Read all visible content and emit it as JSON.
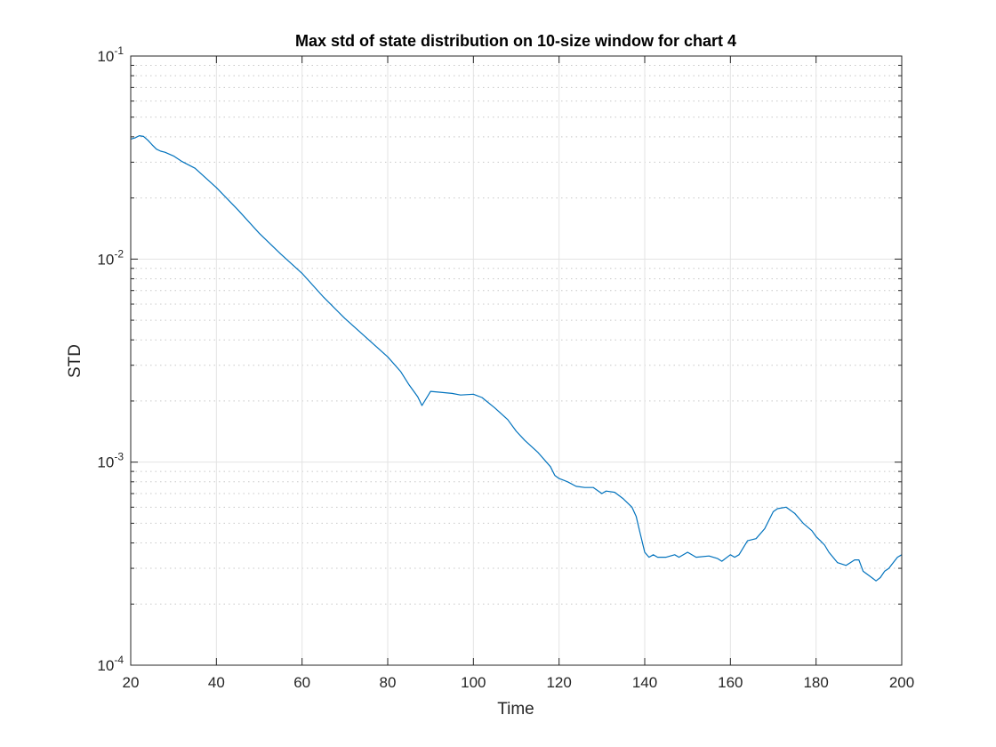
{
  "chart_data": {
    "type": "line",
    "title": "Max std of state distribution on 10-size window for chart 4",
    "xlabel": "Time",
    "ylabel": "STD",
    "xlim": [
      20,
      200
    ],
    "ylim": [
      0.0001,
      0.1
    ],
    "yscale": "log",
    "xticks": [
      20,
      40,
      60,
      80,
      100,
      120,
      140,
      160,
      180,
      200
    ],
    "yticks": [
      {
        "base": "10",
        "exp": "-4",
        "value": 0.0001
      },
      {
        "base": "10",
        "exp": "-3",
        "value": 0.001
      },
      {
        "base": "10",
        "exp": "-2",
        "value": 0.01
      },
      {
        "base": "10",
        "exp": "-1",
        "value": 0.1
      }
    ],
    "grid": true,
    "minor_grid": true,
    "line_color": "#0072bd",
    "series": [
      {
        "x": [
          20,
          21,
          22,
          23,
          24,
          25,
          26,
          27,
          28,
          30,
          32,
          35,
          40,
          45,
          50,
          55,
          60,
          65,
          70,
          75,
          80,
          83,
          85,
          87,
          88,
          90,
          92,
          95,
          97,
          100,
          102,
          105,
          108,
          110,
          112,
          115,
          118,
          119,
          120,
          122,
          124,
          126,
          128,
          130,
          131,
          133,
          135,
          137,
          138,
          139,
          140,
          141,
          142,
          143,
          145,
          147,
          148,
          150,
          152,
          155,
          157,
          158,
          160,
          161,
          162,
          164,
          166,
          168,
          170,
          171,
          173,
          175,
          177,
          179,
          180,
          181,
          182,
          183,
          185,
          187,
          188,
          189,
          190,
          191,
          193,
          194,
          195,
          196,
          197,
          198,
          199,
          200
        ],
        "y": [
          0.039,
          0.0395,
          0.0405,
          0.0402,
          0.0385,
          0.0365,
          0.0348,
          0.034,
          0.0336,
          0.0322,
          0.0302,
          0.028,
          0.0225,
          0.0175,
          0.0134,
          0.0106,
          0.0085,
          0.0065,
          0.0051,
          0.0041,
          0.0033,
          0.0028,
          0.0024,
          0.0021,
          0.0019,
          0.00223,
          0.00221,
          0.00218,
          0.00214,
          0.00216,
          0.00208,
          0.00185,
          0.00162,
          0.00142,
          0.00128,
          0.00112,
          0.00095,
          0.00086,
          0.00083,
          0.0008,
          0.00076,
          0.00075,
          0.00075,
          0.0007,
          0.00072,
          0.00071,
          0.00066,
          0.0006,
          0.00054,
          0.00044,
          0.00036,
          0.00034,
          0.00035,
          0.00034,
          0.00034,
          0.00035,
          0.00034,
          0.00036,
          0.00034,
          0.000345,
          0.000335,
          0.000325,
          0.00035,
          0.00034,
          0.00035,
          0.00041,
          0.00042,
          0.00047,
          0.00057,
          0.00059,
          0.0006,
          0.00056,
          0.0005,
          0.00046,
          0.00043,
          0.00041,
          0.00039,
          0.00036,
          0.00032,
          0.00031,
          0.00032,
          0.00033,
          0.00033,
          0.00029,
          0.00027,
          0.00026,
          0.00027,
          0.00029,
          0.0003,
          0.00032,
          0.00034,
          0.00035
        ]
      }
    ]
  }
}
